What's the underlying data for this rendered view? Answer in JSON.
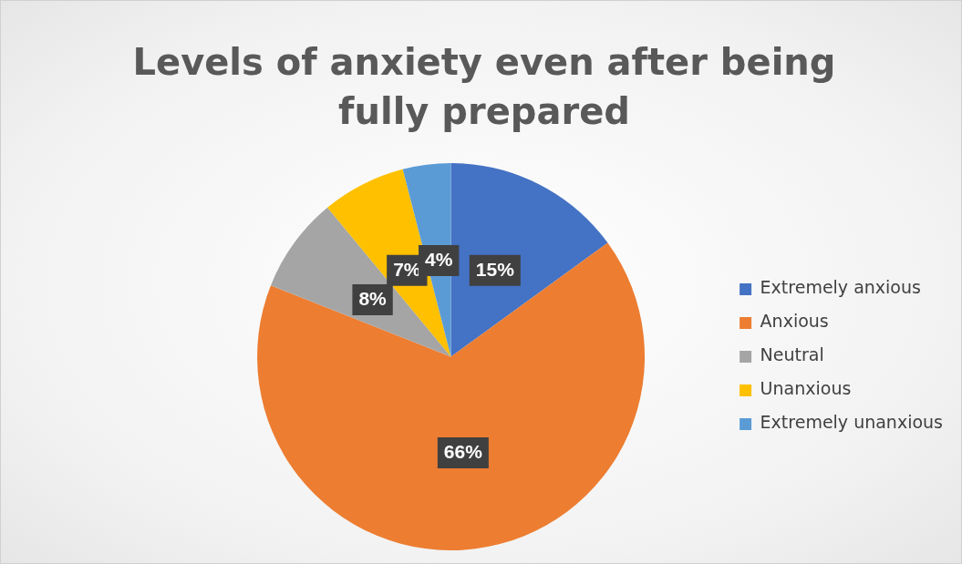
{
  "chart_data": {
    "type": "pie",
    "title": "Levels of anxiety even after being fully prepared",
    "categories": [
      "Extremely anxious",
      "Anxious",
      "Neutral",
      "Unanxious",
      "Extremely unanxious"
    ],
    "values": [
      15,
      66,
      8,
      7,
      4
    ],
    "colors": [
      "#4472c4",
      "#ed7d31",
      "#a5a5a5",
      "#ffc000",
      "#5b9bd5"
    ],
    "value_labels": [
      "15%",
      "66%",
      "8%",
      "7%",
      "4%"
    ],
    "legend": "right"
  }
}
